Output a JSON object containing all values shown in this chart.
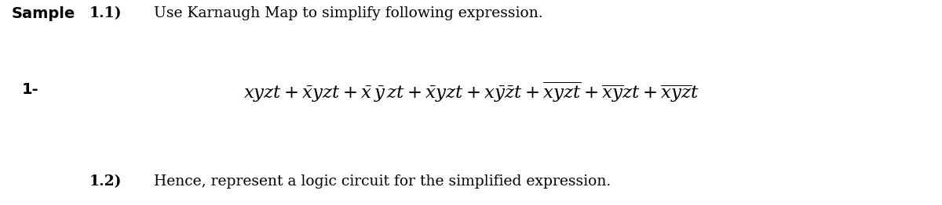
{
  "bg_color": "#ffffff",
  "text_color": "#000000",
  "title_line1": "Sample",
  "title_line2": "1-",
  "label1": "1.1)",
  "text1": "Use Karnaugh Map to simplify following expression.",
  "label2": "1.2)",
  "text2": "Hence, represent a logic circuit for the simplified expression.",
  "expr": "$xyzt + \\bar{x}yzt + \\bar{x}\\,\\bar{y}\\,zt + \\bar{x}yzt + x\\bar{y}\\bar{z}t + \\overline{xyzt} + \\overline{xy}zt + \\overline{xyz}t$",
  "fs_title": 14,
  "fs_label": 13.5,
  "fs_text": 13.5,
  "fs_expr": 16.5
}
